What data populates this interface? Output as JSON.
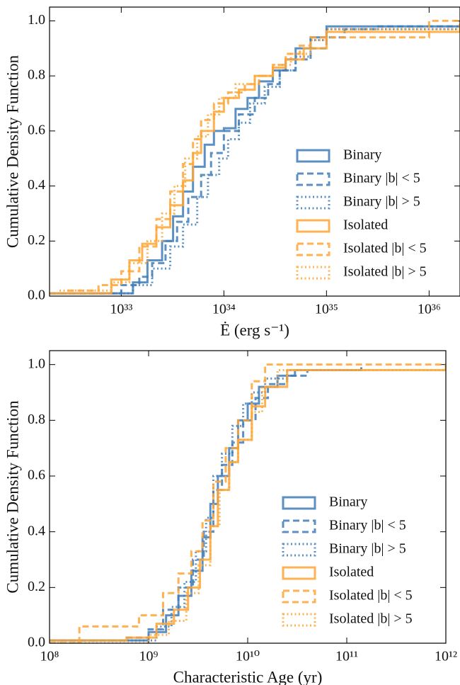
{
  "chart_data": [
    {
      "type": "step",
      "xscale": "log",
      "xlim": [
        2e+32,
        2e+36
      ],
      "ylim": [
        0,
        1.05
      ],
      "legend": "lower right",
      "xlabel": "Ė (erg s⁻¹)",
      "ylabel": "Cumulative Density Function",
      "xticks": [
        {
          "value": 1e+33,
          "label": "10³³"
        },
        {
          "value": 1e+34,
          "label": "10³⁴"
        },
        {
          "value": 1e+35,
          "label": "10³⁵"
        },
        {
          "value": 1e+36,
          "label": "10³⁶"
        }
      ],
      "yticks": [
        {
          "value": 0,
          "label": "0.0"
        },
        0.2,
        0.4,
        0.6,
        0.8,
        {
          "value": 1,
          "label": "1.0"
        }
      ],
      "series": [
        {
          "name": "Binary",
          "color": "#3f7cb8",
          "linestyle": "solid",
          "x": [
            2e+32,
            1.3e+33,
            1.8e+33,
            2.5e+33,
            3.2e+33,
            4e+33,
            5e+33,
            6.5e+33,
            8e+33,
            1e+34,
            1.3e+34,
            1.7e+34,
            2.2e+34,
            3e+34,
            4e+34,
            5e+34,
            7e+34,
            1e+35,
            2e+36
          ],
          "values": [
            0.01,
            0.05,
            0.13,
            0.2,
            0.29,
            0.38,
            0.47,
            0.55,
            0.6,
            0.61,
            0.68,
            0.72,
            0.78,
            0.82,
            0.86,
            0.9,
            0.94,
            0.98,
            0.99
          ]
        },
        {
          "name": "Binary |b| < 5",
          "color": "#3f7cb8",
          "linestyle": "dashed",
          "x": [
            2e+32,
            1e+33,
            1.5e+33,
            2e+33,
            2.7e+33,
            3.5e+33,
            4.5e+33,
            6e+33,
            7.5e+33,
            1e+34,
            1.4e+34,
            2e+34,
            2.7e+34,
            3.5e+34,
            5e+34,
            7e+34,
            1e+35,
            1.5e+35,
            3e+35,
            2e+36
          ],
          "values": [
            0.01,
            0.04,
            0.07,
            0.12,
            0.2,
            0.27,
            0.36,
            0.44,
            0.52,
            0.6,
            0.66,
            0.72,
            0.77,
            0.82,
            0.86,
            0.9,
            0.94,
            0.97,
            0.98,
            1.0
          ]
        },
        {
          "name": "Binary |b| > 5",
          "color": "#3f7cb8",
          "linestyle": "dotted",
          "x": [
            2e+32,
            1.3e+33,
            2e+33,
            3e+33,
            4e+33,
            5.5e+33,
            7e+33,
            9e+33,
            1.1e+34,
            1.4e+34,
            1.8e+34,
            2.5e+34,
            3.5e+34,
            5e+34,
            7e+34,
            1e+35,
            2e+36
          ],
          "values": [
            0.01,
            0.04,
            0.1,
            0.18,
            0.26,
            0.36,
            0.44,
            0.5,
            0.57,
            0.63,
            0.7,
            0.76,
            0.82,
            0.87,
            0.93,
            0.97,
            1.0
          ]
        },
        {
          "name": "Isolated",
          "color": "#ffa533",
          "linestyle": "solid",
          "x": [
            2e+32,
            8e+32,
            1.2e+33,
            1.6e+33,
            2.2e+33,
            3e+33,
            4e+33,
            5e+33,
            6e+33,
            8e+33,
            1e+34,
            1.4e+34,
            2e+34,
            3e+34,
            4e+34,
            6e+34,
            1e+35,
            2e+36
          ],
          "values": [
            0.01,
            0.06,
            0.13,
            0.19,
            0.25,
            0.33,
            0.42,
            0.52,
            0.6,
            0.67,
            0.72,
            0.75,
            0.8,
            0.83,
            0.86,
            0.9,
            0.96,
            0.99
          ]
        },
        {
          "name": "Isolated |b| < 5",
          "color": "#ffa533",
          "linestyle": "dashed",
          "x": [
            3e+32,
            6e+32,
            1e+33,
            1.5e+33,
            2.2e+33,
            3e+33,
            4e+33,
            5e+33,
            6e+33,
            8e+33,
            1.1e+34,
            1.6e+34,
            2.2e+34,
            3e+34,
            4e+34,
            5.5e+34,
            7e+34,
            1e+35,
            1e+36,
            2e+36
          ],
          "values": [
            0.02,
            0.04,
            0.09,
            0.18,
            0.28,
            0.38,
            0.48,
            0.57,
            0.64,
            0.7,
            0.74,
            0.77,
            0.8,
            0.84,
            0.88,
            0.91,
            0.94,
            0.94,
            1.0,
            1.0
          ]
        },
        {
          "name": "Isolated |b| > 5",
          "color": "#ffa533",
          "linestyle": "dotted",
          "x": [
            2.5e+32,
            8e+32,
            1.2e+33,
            1.8e+33,
            2.5e+33,
            3.3e+33,
            4.2e+33,
            5.5e+33,
            7e+33,
            9e+33,
            1.3e+34,
            2e+34,
            3e+34,
            4.5e+34,
            7e+34,
            1e+35,
            2e+36
          ],
          "values": [
            0.02,
            0.05,
            0.12,
            0.2,
            0.3,
            0.4,
            0.5,
            0.58,
            0.66,
            0.72,
            0.77,
            0.8,
            0.84,
            0.88,
            0.93,
            0.97,
            1.0
          ]
        }
      ]
    },
    {
      "type": "step",
      "xscale": "log",
      "xlim": [
        100000000.0,
        1000000000000.0
      ],
      "ylim": [
        0,
        1.05
      ],
      "legend": "lower right",
      "xlabel": "Characteristic Age (yr)",
      "ylabel": "Cumulative Density Function",
      "xticks": [
        {
          "value": 100000000.0,
          "label": "10⁸"
        },
        {
          "value": 1000000000.0,
          "label": "10⁹"
        },
        {
          "value": 10000000000.0,
          "label": "10¹⁰"
        },
        {
          "value": 100000000000.0,
          "label": "10¹¹"
        },
        {
          "value": 1000000000000.0,
          "label": "10¹²"
        }
      ],
      "yticks": [
        {
          "value": 0,
          "label": "0.0"
        },
        0.2,
        0.4,
        0.6,
        0.8,
        {
          "value": 1,
          "label": "1.0"
        }
      ],
      "series": [
        {
          "name": "Binary",
          "color": "#3f7cb8",
          "linestyle": "solid",
          "x": [
            100000000.0,
            1000000000.0,
            1500000000.0,
            2000000000.0,
            2700000000.0,
            3500000000.0,
            4200000000.0,
            5000000000.0,
            6500000000.0,
            8000000000.0,
            10000000000.0,
            13000000000.0,
            20000000000.0,
            30000000000.0,
            140000000000.0
          ],
          "values": [
            0.01,
            0.04,
            0.1,
            0.17,
            0.26,
            0.38,
            0.5,
            0.6,
            0.7,
            0.8,
            0.86,
            0.92,
            0.96,
            0.98,
            0.99
          ]
        },
        {
          "name": "Binary |b| < 5",
          "color": "#3f7cb8",
          "linestyle": "dashed",
          "x": [
            100000000.0,
            600000000.0,
            1000000000.0,
            1400000000.0,
            2000000000.0,
            2800000000.0,
            3600000000.0,
            4500000000.0,
            5500000000.0,
            7000000000.0,
            9000000000.0,
            12000000000.0,
            16000000000.0,
            25000000000.0,
            40000000000.0,
            140000000000.0
          ],
          "values": [
            0.01,
            0.02,
            0.05,
            0.12,
            0.2,
            0.3,
            0.4,
            0.55,
            0.64,
            0.72,
            0.8,
            0.88,
            0.93,
            0.96,
            0.98,
            0.99
          ]
        },
        {
          "name": "Binary |b| > 5",
          "color": "#3f7cb8",
          "linestyle": "dotted",
          "x": [
            100000000.0,
            1200000000.0,
            1700000000.0,
            2300000000.0,
            3000000000.0,
            3800000000.0,
            4500000000.0,
            5500000000.0,
            7000000000.0,
            9000000000.0,
            11000000000.0,
            15000000000.0,
            25000000000.0,
            140000000000.0
          ],
          "values": [
            0.01,
            0.06,
            0.13,
            0.22,
            0.33,
            0.45,
            0.6,
            0.68,
            0.78,
            0.86,
            0.9,
            0.95,
            0.98,
            0.99
          ]
        },
        {
          "name": "Isolated",
          "color": "#ffa533",
          "linestyle": "solid",
          "x": [
            100000000.0,
            600000000.0,
            1200000000.0,
            1800000000.0,
            2500000000.0,
            3300000000.0,
            4200000000.0,
            5000000000.0,
            6500000000.0,
            8000000000.0,
            11000000000.0,
            15000000000.0,
            25000000000.0,
            1000000000000.0
          ],
          "values": [
            0.01,
            0.02,
            0.07,
            0.12,
            0.2,
            0.3,
            0.42,
            0.55,
            0.65,
            0.73,
            0.85,
            0.92,
            0.98,
            1.0
          ]
        },
        {
          "name": "Isolated |b| < 5",
          "color": "#ffa533",
          "linestyle": "dashed",
          "x": [
            100000000.0,
            200000000.0,
            800000000.0,
            1400000000.0,
            2000000000.0,
            2700000000.0,
            3500000000.0,
            4500000000.0,
            6000000000.0,
            8000000000.0,
            11000000000.0,
            15000000000.0,
            1000000000000.0
          ],
          "values": [
            0.0,
            0.06,
            0.1,
            0.18,
            0.25,
            0.33,
            0.44,
            0.58,
            0.7,
            0.8,
            0.94,
            1.0,
            1.0
          ]
        },
        {
          "name": "Isolated |b| > 5",
          "color": "#ffa533",
          "linestyle": "dotted",
          "x": [
            100000000.0,
            1000000000.0,
            1600000000.0,
            2400000000.0,
            3200000000.0,
            4200000000.0,
            5200000000.0,
            6500000000.0,
            8000000000.0,
            11000000000.0,
            14000000000.0,
            20000000000.0,
            1000000000000.0
          ],
          "values": [
            0.0,
            0.03,
            0.08,
            0.18,
            0.28,
            0.42,
            0.55,
            0.65,
            0.73,
            0.83,
            0.92,
            0.98,
            1.0
          ]
        }
      ]
    }
  ]
}
